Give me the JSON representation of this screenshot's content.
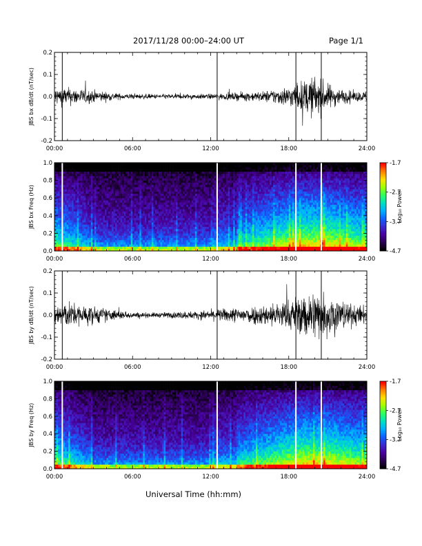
{
  "header": {
    "title": "2017/11/28   00:00–24:00 UT",
    "page": "Page 1/1"
  },
  "x_axis_title": "Universal Time (hh:mm)",
  "colors": {
    "trace": "#000000",
    "background": "#ffffff",
    "gap_line": "#ffffff",
    "colormap": [
      "#000000",
      "#2a0050",
      "#4a00a0",
      "#3a2ad0",
      "#1060ff",
      "#00b0ff",
      "#00e0c0",
      "#30ff60",
      "#a0ff00",
      "#ffe000",
      "#ff8000",
      "#ff0000"
    ]
  },
  "chart_data": [
    {
      "type": "line",
      "panel": "bx-timeseries",
      "ylabel": "JBS bx dB/dt (nT/sec)",
      "xlim": [
        0,
        24
      ],
      "ylim": [
        -0.2,
        0.2
      ],
      "xticks": [
        0,
        6,
        12,
        18,
        24
      ],
      "xtick_labels": [
        "00:00",
        "06:00",
        "12:00",
        "18:00",
        "24:00"
      ],
      "yticks": [
        -0.2,
        -0.1,
        0.0,
        0.1,
        0.2
      ],
      "ytick_labels": [
        "-0.2",
        "-0.1",
        "0.0",
        "0.1",
        "0.2"
      ],
      "gaps_hours": [
        0.6,
        12.5,
        18.55,
        20.5
      ],
      "envelope": {
        "hours": [
          0,
          1,
          2,
          3,
          4,
          5,
          6,
          7,
          8,
          9,
          10,
          11,
          12,
          13,
          14,
          15,
          16,
          17,
          18,
          19,
          20,
          21,
          22,
          23,
          24
        ],
        "amplitude": [
          0.035,
          0.035,
          0.03,
          0.025,
          0.018,
          0.012,
          0.01,
          0.01,
          0.009,
          0.01,
          0.01,
          0.01,
          0.01,
          0.012,
          0.015,
          0.018,
          0.02,
          0.03,
          0.04,
          0.06,
          0.08,
          0.05,
          0.03,
          0.02,
          0.02
        ]
      }
    },
    {
      "type": "heatmap",
      "panel": "bx-spectrogram",
      "ylabel": "JBS bx Freq (Hz)",
      "xlim": [
        0,
        24
      ],
      "ylim": [
        0,
        1.0
      ],
      "xticks": [
        0,
        6,
        12,
        18,
        24
      ],
      "xtick_labels": [
        "00:00",
        "06:00",
        "12:00",
        "18:00",
        "24:00"
      ],
      "yticks": [
        0.0,
        0.2,
        0.4,
        0.6,
        0.8,
        1.0
      ],
      "ytick_labels": [
        "0.0",
        "0.2",
        "0.4",
        "0.6",
        "0.8",
        "1.0"
      ],
      "gaps_hours": [
        0.6,
        12.5,
        18.55,
        20.5
      ],
      "colorbar": {
        "title": "Log₁₀ Power",
        "range": [
          -4.7,
          -1.7
        ],
        "ticks": [
          -1.7,
          -2.7,
          -3.7,
          -4.7
        ],
        "tick_labels": [
          "-1.7",
          "-2.7",
          "-3.7",
          "-4.7"
        ]
      }
    },
    {
      "type": "line",
      "panel": "by-timeseries",
      "ylabel": "JBS by dB/dt (nT/sec)",
      "xlim": [
        0,
        24
      ],
      "ylim": [
        -0.2,
        0.2
      ],
      "xticks": [
        0,
        6,
        12,
        18,
        24
      ],
      "xtick_labels": [
        "00:00",
        "06:00",
        "12:00",
        "18:00",
        "24:00"
      ],
      "yticks": [
        -0.2,
        -0.1,
        0.0,
        0.1,
        0.2
      ],
      "ytick_labels": [
        "-0.2",
        "-0.1",
        "0.0",
        "0.1",
        "0.2"
      ],
      "gaps_hours": [
        0.6,
        12.5,
        18.55,
        20.5
      ],
      "envelope": {
        "hours": [
          0,
          1,
          2,
          3,
          4,
          5,
          6,
          7,
          8,
          9,
          10,
          11,
          12,
          13,
          14,
          15,
          16,
          17,
          18,
          19,
          20,
          21,
          22,
          23,
          24
        ],
        "amplitude": [
          0.05,
          0.05,
          0.04,
          0.035,
          0.025,
          0.018,
          0.012,
          0.01,
          0.01,
          0.012,
          0.015,
          0.015,
          0.02,
          0.025,
          0.03,
          0.035,
          0.04,
          0.05,
          0.06,
          0.08,
          0.1,
          0.09,
          0.06,
          0.04,
          0.035
        ]
      }
    },
    {
      "type": "heatmap",
      "panel": "by-spectrogram",
      "ylabel": "JBS by Freq (Hz)",
      "xlim": [
        0,
        24
      ],
      "ylim": [
        0,
        1.0
      ],
      "xticks": [
        0,
        6,
        12,
        18,
        24
      ],
      "xtick_labels": [
        "00:00",
        "06:00",
        "12:00",
        "18:00",
        "24:00"
      ],
      "yticks": [
        0.0,
        0.2,
        0.4,
        0.6,
        0.8,
        1.0
      ],
      "ytick_labels": [
        "0.0",
        "0.2",
        "0.4",
        "0.6",
        "0.8",
        "1.0"
      ],
      "gaps_hours": [
        0.6,
        12.5,
        18.55,
        20.5
      ],
      "colorbar": {
        "title": "Log₁₀ Power",
        "range": [
          -4.7,
          -1.7
        ],
        "ticks": [
          -1.7,
          -2.7,
          -3.7,
          -4.7
        ],
        "tick_labels": [
          "-1.7",
          "-2.7",
          "-3.7",
          "-4.7"
        ]
      }
    }
  ]
}
